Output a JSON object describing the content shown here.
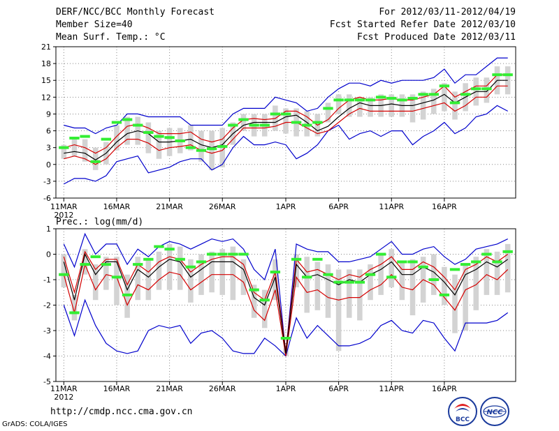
{
  "header": {
    "title": "DERF/NCC/BCC Monthly Forecast",
    "member_size": "Member Size=40",
    "variable": "Mean Surf. Temp.: °C",
    "period": "For 2012/03/11-2012/04/19",
    "fcst_started": "Fcst Started Refer Date 2012/03/10",
    "fcst_produced": "Fcst Produced Date 2012/03/11"
  },
  "footer": {
    "url": "http://cmdp.ncc.cma.gov.cn",
    "credit": "GrADS: COLA/IGES",
    "logo_bcc": "BCC",
    "logo_ncc": "NCC"
  },
  "colors": {
    "mean": "#000000",
    "quartile": "#d40000",
    "extreme": "#0000cc",
    "box": "#d3d3d3",
    "obs": "#33ee33",
    "grid": "#888888"
  },
  "chart_data": [
    {
      "type": "line",
      "title": "Mean Surf. Temp.: °C",
      "x_labels": [
        "11MAR",
        "16MAR",
        "21MAR",
        "26MAR",
        "1APR",
        "6APR",
        "11APR",
        "16APR"
      ],
      "x_label_days": [
        0,
        5,
        10,
        15,
        21,
        26,
        31,
        36
      ],
      "year_label": "2012",
      "ylim": [
        -6,
        21
      ],
      "yticks": [
        -6,
        -3,
        0,
        3,
        6,
        9,
        12,
        15,
        18,
        21
      ],
      "series": [
        {
          "name": "mean",
          "values": [
            2.0,
            2.3,
            2.0,
            0.8,
            2.0,
            4.0,
            5.5,
            6.0,
            5.5,
            4.0,
            4.0,
            4.2,
            4.5,
            3.5,
            3.0,
            3.5,
            5.5,
            7.0,
            7.5,
            7.5,
            7.5,
            8.5,
            8.8,
            7.5,
            6.0,
            6.8,
            8.5,
            10.0,
            11.0,
            10.5,
            10.5,
            10.8,
            10.5,
            10.5,
            11.0,
            11.5,
            12.5,
            11.0,
            12.0,
            13.0,
            13.0,
            15.0,
            15.0
          ]
        },
        {
          "name": "q_upper",
          "values": [
            3.0,
            3.5,
            3.0,
            2.0,
            3.0,
            5.0,
            6.8,
            7.2,
            6.5,
            5.5,
            5.5,
            5.5,
            5.8,
            4.5,
            4.0,
            4.5,
            6.5,
            8.0,
            8.2,
            8.0,
            8.2,
            9.5,
            9.5,
            8.5,
            7.0,
            8.0,
            10.0,
            11.5,
            12.0,
            11.5,
            11.5,
            11.8,
            11.5,
            11.5,
            12.0,
            12.5,
            14.0,
            12.0,
            13.0,
            14.0,
            14.0,
            16.0,
            16.0
          ]
        },
        {
          "name": "q_lower",
          "values": [
            1.0,
            1.5,
            1.0,
            0.0,
            1.0,
            3.0,
            4.5,
            4.5,
            3.8,
            2.5,
            3.0,
            3.2,
            3.5,
            2.5,
            2.0,
            2.5,
            4.5,
            6.5,
            6.5,
            6.5,
            6.8,
            7.5,
            7.5,
            6.5,
            5.5,
            6.0,
            7.5,
            9.0,
            10.0,
            9.5,
            9.5,
            9.5,
            9.5,
            9.5,
            10.0,
            10.5,
            11.0,
            9.5,
            10.5,
            12.0,
            12.0,
            14.0,
            14.0
          ]
        },
        {
          "name": "max",
          "values": [
            7.0,
            6.5,
            6.5,
            5.5,
            6.5,
            7.0,
            9.0,
            9.0,
            8.5,
            8.5,
            8.5,
            8.5,
            7.0,
            7.0,
            7.0,
            7.0,
            9.0,
            10.0,
            10.0,
            10.0,
            12.0,
            11.5,
            11.0,
            9.5,
            10.0,
            12.0,
            13.5,
            14.5,
            14.5,
            14.0,
            15.0,
            14.5,
            15.0,
            15.0,
            15.0,
            15.5,
            17.0,
            14.5,
            16.0,
            16.0,
            17.5,
            19.0,
            19.0
          ]
        },
        {
          "name": "min",
          "values": [
            -3.5,
            -2.5,
            -2.5,
            -3.0,
            -2.0,
            0.5,
            1.0,
            1.5,
            -1.5,
            -1.0,
            -0.5,
            0.5,
            1.0,
            1.0,
            -1.0,
            0.0,
            3.0,
            5.0,
            3.5,
            3.5,
            4.0,
            3.5,
            1.0,
            2.0,
            3.5,
            6.0,
            7.0,
            4.5,
            5.5,
            6.0,
            5.0,
            6.0,
            6.0,
            3.5,
            5.0,
            6.0,
            7.5,
            5.5,
            6.5,
            8.5,
            9.0,
            10.5,
            9.5
          ]
        },
        {
          "name": "box_top",
          "values": [
            3.5,
            4.5,
            4.5,
            3.0,
            4.0,
            7.0,
            8.5,
            8.5,
            7.5,
            6.0,
            6.5,
            6.5,
            7.0,
            6.0,
            6.0,
            6.5,
            7.5,
            9.0,
            9.0,
            9.0,
            10.5,
            10.0,
            10.0,
            9.5,
            9.0,
            11.0,
            12.5,
            12.5,
            12.0,
            12.0,
            12.5,
            12.5,
            12.5,
            12.5,
            13.0,
            13.5,
            14.5,
            13.0,
            14.5,
            15.5,
            15.5,
            17.5,
            17.5
          ]
        },
        {
          "name": "box_bottom",
          "values": [
            1.0,
            1.5,
            0.5,
            -1.0,
            0.0,
            2.5,
            3.5,
            3.5,
            2.0,
            1.0,
            1.5,
            2.0,
            2.5,
            0.5,
            -1.0,
            -0.5,
            3.5,
            6.0,
            5.0,
            5.0,
            6.0,
            5.5,
            5.0,
            5.0,
            5.0,
            7.5,
            9.0,
            8.5,
            8.5,
            8.5,
            8.5,
            8.5,
            8.5,
            7.5,
            8.0,
            9.0,
            9.5,
            8.0,
            9.5,
            10.5,
            11.0,
            12.5,
            12.5
          ]
        },
        {
          "name": "obs",
          "values": [
            3.0,
            4.7,
            5.0,
            0.5,
            4.5,
            7.5,
            8.0,
            7.0,
            5.7,
            5.0,
            4.8,
            4.2,
            3.0,
            2.5,
            2.8,
            3.2,
            7.0,
            8.0,
            7.0,
            7.0,
            9.0,
            9.0,
            7.5,
            7.0,
            7.5,
            10.0,
            11.5,
            11.5,
            11.5,
            11.5,
            12.0,
            11.8,
            11.5,
            11.8,
            12.5,
            12.5,
            14.0,
            11.0,
            12.5,
            13.5,
            13.5,
            16.0,
            16.0
          ]
        }
      ]
    },
    {
      "type": "line",
      "title": "Prec.: log(mm/d)",
      "x_labels": [
        "11MAR",
        "16MAR",
        "21MAR",
        "26MAR",
        "1APR",
        "6APR",
        "11APR",
        "16APR"
      ],
      "x_label_days": [
        0,
        5,
        10,
        15,
        21,
        26,
        31,
        36
      ],
      "year_label": "2012",
      "ylim": [
        -5,
        1
      ],
      "yticks": [
        -5,
        -4,
        -3,
        -2,
        -1,
        0,
        1
      ],
      "series": [
        {
          "name": "mean",
          "values": [
            -0.3,
            -1.8,
            0.0,
            -0.8,
            -0.3,
            -0.3,
            -1.4,
            -0.6,
            -0.9,
            -0.5,
            -0.2,
            -0.3,
            -0.9,
            -0.6,
            -0.3,
            -0.3,
            -0.3,
            -0.6,
            -1.7,
            -2.0,
            -0.9,
            -3.9,
            -0.4,
            -0.9,
            -0.8,
            -1.0,
            -1.2,
            -1.0,
            -1.1,
            -0.8,
            -0.6,
            -0.3,
            -0.8,
            -0.8,
            -0.5,
            -0.7,
            -1.1,
            -1.6,
            -0.8,
            -0.6,
            -0.3,
            -0.5,
            -0.2
          ]
        },
        {
          "name": "q_upper",
          "values": [
            -0.1,
            -1.5,
            0.1,
            -0.6,
            -0.2,
            -0.2,
            -1.2,
            -0.4,
            -0.7,
            -0.3,
            -0.1,
            -0.2,
            -0.7,
            -0.4,
            -0.2,
            -0.1,
            -0.1,
            -0.4,
            -1.5,
            -1.8,
            -0.7,
            -3.8,
            -0.2,
            -0.7,
            -0.6,
            -0.8,
            -1.0,
            -0.8,
            -0.9,
            -0.6,
            -0.4,
            -0.1,
            -0.6,
            -0.6,
            -0.3,
            -0.5,
            -0.9,
            -1.4,
            -0.6,
            -0.4,
            -0.1,
            -0.3,
            0.0
          ]
        },
        {
          "name": "q_lower",
          "values": [
            -0.8,
            -2.3,
            -0.4,
            -1.4,
            -0.8,
            -0.9,
            -2.0,
            -1.2,
            -1.4,
            -1.0,
            -0.7,
            -0.8,
            -1.4,
            -1.1,
            -0.8,
            -0.8,
            -0.8,
            -1.1,
            -2.2,
            -2.6,
            -1.4,
            -4.0,
            -0.9,
            -1.5,
            -1.4,
            -1.7,
            -1.8,
            -1.7,
            -1.7,
            -1.4,
            -1.2,
            -0.8,
            -1.3,
            -1.4,
            -1.0,
            -1.2,
            -1.7,
            -2.2,
            -1.4,
            -1.2,
            -0.8,
            -1.0,
            -0.6
          ]
        },
        {
          "name": "max",
          "values": [
            0.4,
            -0.5,
            0.8,
            0.0,
            0.4,
            0.4,
            -0.4,
            0.2,
            -0.1,
            0.3,
            0.5,
            0.4,
            0.2,
            0.4,
            0.6,
            0.5,
            0.6,
            0.2,
            -0.6,
            -1.0,
            0.2,
            -3.9,
            0.4,
            0.2,
            0.1,
            0.1,
            -0.3,
            -0.3,
            -0.2,
            -0.1,
            0.2,
            0.5,
            0.0,
            0.0,
            0.2,
            0.3,
            -0.1,
            -0.4,
            -0.2,
            0.2,
            0.3,
            0.4,
            0.6
          ]
        },
        {
          "name": "min",
          "values": [
            -2.0,
            -3.2,
            -1.8,
            -2.8,
            -3.5,
            -3.8,
            -3.9,
            -3.8,
            -3.0,
            -2.8,
            -2.9,
            -2.8,
            -3.5,
            -3.1,
            -3.0,
            -3.3,
            -3.8,
            -3.9,
            -3.9,
            -3.3,
            -3.6,
            -4.0,
            -2.5,
            -3.3,
            -2.8,
            -3.2,
            -3.6,
            -3.6,
            -3.5,
            -3.3,
            -2.8,
            -2.6,
            -3.0,
            -3.1,
            -2.6,
            -2.7,
            -3.3,
            -3.8,
            -2.7,
            -2.7,
            -2.7,
            -2.6,
            -2.3
          ]
        },
        {
          "name": "box_top",
          "values": [
            0.0,
            -1.6,
            0.2,
            -0.4,
            -0.1,
            -0.1,
            -0.8,
            -0.1,
            -0.2,
            0.1,
            0.4,
            0.3,
            -0.2,
            0.0,
            0.1,
            0.2,
            0.3,
            -0.2,
            -1.2,
            -1.4,
            -0.2,
            -3.7,
            0.0,
            -0.1,
            -0.3,
            -0.4,
            -0.6,
            -0.6,
            -0.6,
            -0.4,
            0.0,
            0.2,
            -0.3,
            -0.2,
            -0.1,
            0.0,
            -0.5,
            -0.8,
            -0.4,
            -0.1,
            0.2,
            0.1,
            0.4
          ]
        },
        {
          "name": "box_bottom",
          "values": [
            -1.3,
            -2.6,
            -0.8,
            -1.8,
            -1.4,
            -2.0,
            -2.5,
            -1.8,
            -1.8,
            -1.4,
            -1.4,
            -1.4,
            -1.9,
            -1.6,
            -1.5,
            -1.6,
            -1.8,
            -1.6,
            -2.5,
            -2.9,
            -1.8,
            -4.0,
            -1.3,
            -2.3,
            -2.2,
            -2.5,
            -3.8,
            -2.5,
            -2.6,
            -1.8,
            -1.6,
            -1.3,
            -1.8,
            -2.4,
            -1.9,
            -1.6,
            -2.0,
            -3.1,
            -3.0,
            -2.2,
            -1.6,
            -1.6,
            -1.5
          ]
        },
        {
          "name": "obs",
          "values": [
            -0.8,
            -2.3,
            -0.4,
            -0.1,
            -0.4,
            -0.9,
            -1.6,
            -0.4,
            -0.2,
            0.3,
            0.2,
            -0.2,
            -0.5,
            -0.3,
            0.0,
            0.0,
            0.0,
            0.0,
            -1.4,
            -1.8,
            -0.7,
            -3.3,
            -0.2,
            -0.9,
            -0.2,
            -0.8,
            -1.1,
            -1.1,
            -1.1,
            -0.8,
            0.0,
            -0.9,
            -0.3,
            -0.3,
            -0.5,
            -1.0,
            -1.6,
            -0.6,
            -0.4,
            -0.3,
            0.0,
            -0.3,
            0.1
          ]
        }
      ]
    }
  ]
}
